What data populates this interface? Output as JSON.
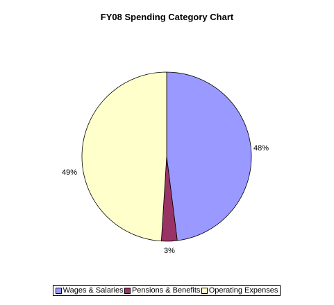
{
  "chart_data": {
    "type": "pie",
    "title": "FY08 Spending Category Chart",
    "slices": [
      {
        "name": "Wages & Salaries",
        "value": 48,
        "label": "48%",
        "color": "#9999ff"
      },
      {
        "name": "Pensions & Benefits",
        "value": 3,
        "label": "3%",
        "color": "#993366"
      },
      {
        "name": "Operating Expenses",
        "value": 49,
        "label": "49%",
        "color": "#ffffcc"
      }
    ],
    "legend": "bottom"
  }
}
